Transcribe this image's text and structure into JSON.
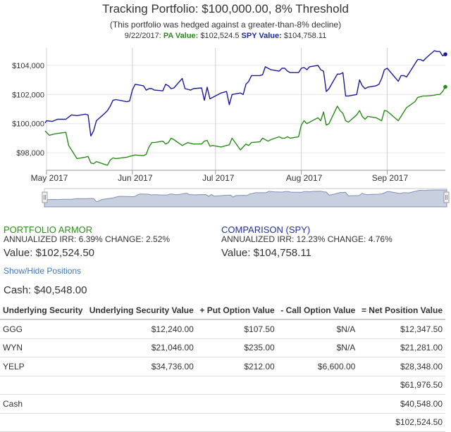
{
  "header": {
    "title": "Tracking Portfolio: $100,000.00, 8% Threshold",
    "subtitle": "(This portfolio was hedged against a greater-than-8% decline)",
    "readout_date": "9/22/2017:",
    "readout_pa_label": "PA Value:",
    "readout_pa_value": "$102,524.5",
    "readout_spy_label": "SPY Value:",
    "readout_spy_value": "$104,758.11"
  },
  "colors": {
    "pa": "#2a8a1a",
    "spy": "#1a1a9a",
    "grid": "#e6e6e6",
    "navigator_fill": "#c8d0df"
  },
  "chart_data": {
    "type": "line",
    "x_start": "2017-05-01",
    "x_end": "2017-09-22",
    "x_ticks": [
      {
        "date": "2017-05-01",
        "label": "May 2017"
      },
      {
        "date": "2017-06-01",
        "label": "Jun 2017"
      },
      {
        "date": "2017-07-01",
        "label": "Jul 2017"
      },
      {
        "date": "2017-08-01",
        "label": "Aug 2017"
      },
      {
        "date": "2017-09-01",
        "label": "Sep 2017"
      }
    ],
    "y_ticks": [
      {
        "value": 98000,
        "label": "$98,000"
      },
      {
        "value": 100000,
        "label": "$100,000"
      },
      {
        "value": 102000,
        "label": "$102,000"
      },
      {
        "value": 104000,
        "label": "$104,000"
      }
    ],
    "ylim": [
      96800,
      105200
    ],
    "grid": "vertical at month ticks, horizontal at y ticks",
    "series": [
      {
        "key": "spy",
        "color": "#1a1a9a",
        "points": [
          [
            "2017-04-28",
            100050
          ],
          [
            "2017-05-01",
            100200
          ],
          [
            "2017-05-03",
            100150
          ],
          [
            "2017-05-05",
            100300
          ],
          [
            "2017-05-08",
            100300
          ],
          [
            "2017-05-10",
            100600
          ],
          [
            "2017-05-12",
            100550
          ],
          [
            "2017-05-15",
            100650
          ],
          [
            "2017-05-16",
            100600
          ],
          [
            "2017-05-17",
            99150
          ],
          [
            "2017-05-18",
            99500
          ],
          [
            "2017-05-19",
            100200
          ],
          [
            "2017-05-22",
            100700
          ],
          [
            "2017-05-23",
            100900
          ],
          [
            "2017-05-24",
            101200
          ],
          [
            "2017-05-25",
            101600
          ],
          [
            "2017-05-26",
            101650
          ],
          [
            "2017-05-30",
            101500
          ],
          [
            "2017-05-31",
            101550
          ],
          [
            "2017-06-01",
            102300
          ],
          [
            "2017-06-02",
            102700
          ],
          [
            "2017-06-05",
            102600
          ],
          [
            "2017-06-06",
            102300
          ],
          [
            "2017-06-07",
            102400
          ],
          [
            "2017-06-08",
            102400
          ],
          [
            "2017-06-09",
            102300
          ],
          [
            "2017-06-12",
            102250
          ],
          [
            "2017-06-13",
            102700
          ],
          [
            "2017-06-14",
            102600
          ],
          [
            "2017-06-15",
            102400
          ],
          [
            "2017-06-16",
            102450
          ],
          [
            "2017-06-19",
            103100
          ],
          [
            "2017-06-20",
            102400
          ],
          [
            "2017-06-21",
            102350
          ],
          [
            "2017-06-22",
            102300
          ],
          [
            "2017-06-23",
            102400
          ],
          [
            "2017-06-26",
            102450
          ],
          [
            "2017-06-27",
            101600
          ],
          [
            "2017-06-28",
            102500
          ],
          [
            "2017-06-29",
            101700
          ],
          [
            "2017-06-30",
            101800
          ],
          [
            "2017-07-03",
            102100
          ],
          [
            "2017-07-05",
            102200
          ],
          [
            "2017-07-06",
            101300
          ],
          [
            "2017-07-07",
            102000
          ],
          [
            "2017-07-10",
            102100
          ],
          [
            "2017-07-11",
            102000
          ],
          [
            "2017-07-12",
            102700
          ],
          [
            "2017-07-13",
            102900
          ],
          [
            "2017-07-14",
            103300
          ],
          [
            "2017-07-17",
            103300
          ],
          [
            "2017-07-18",
            103350
          ],
          [
            "2017-07-19",
            103900
          ],
          [
            "2017-07-20",
            103800
          ],
          [
            "2017-07-21",
            103700
          ],
          [
            "2017-07-24",
            103600
          ],
          [
            "2017-07-25",
            103800
          ],
          [
            "2017-07-26",
            103800
          ],
          [
            "2017-07-27",
            103600
          ],
          [
            "2017-07-28",
            103500
          ],
          [
            "2017-07-31",
            103500
          ],
          [
            "2017-08-01",
            103800
          ],
          [
            "2017-08-02",
            103850
          ],
          [
            "2017-08-03",
            103700
          ],
          [
            "2017-08-04",
            103900
          ],
          [
            "2017-08-07",
            104000
          ],
          [
            "2017-08-08",
            103700
          ],
          [
            "2017-08-09",
            103600
          ],
          [
            "2017-08-10",
            102200
          ],
          [
            "2017-08-11",
            102400
          ],
          [
            "2017-08-14",
            103400
          ],
          [
            "2017-08-15",
            103400
          ],
          [
            "2017-08-16",
            103500
          ],
          [
            "2017-08-17",
            101900
          ],
          [
            "2017-08-18",
            101900
          ],
          [
            "2017-08-21",
            102000
          ],
          [
            "2017-08-22",
            103000
          ],
          [
            "2017-08-23",
            102600
          ],
          [
            "2017-08-24",
            102400
          ],
          [
            "2017-08-25",
            102500
          ],
          [
            "2017-08-28",
            102600
          ],
          [
            "2017-08-29",
            102700
          ],
          [
            "2017-08-30",
            103100
          ],
          [
            "2017-08-31",
            103700
          ],
          [
            "2017-09-01",
            103800
          ],
          [
            "2017-09-05",
            102900
          ],
          [
            "2017-09-06",
            103300
          ],
          [
            "2017-09-07",
            103300
          ],
          [
            "2017-09-08",
            103200
          ],
          [
            "2017-09-11",
            104100
          ],
          [
            "2017-09-12",
            104400
          ],
          [
            "2017-09-13",
            104400
          ],
          [
            "2017-09-14",
            104300
          ],
          [
            "2017-09-15",
            104500
          ],
          [
            "2017-09-18",
            105000
          ],
          [
            "2017-09-19",
            104950
          ],
          [
            "2017-09-20",
            104950
          ],
          [
            "2017-09-21",
            104650
          ],
          [
            "2017-09-22",
            104758
          ]
        ]
      },
      {
        "key": "pa",
        "color": "#2a8a1a",
        "points": [
          [
            "2017-04-28",
            99500
          ],
          [
            "2017-05-01",
            99400
          ],
          [
            "2017-05-02",
            99200
          ],
          [
            "2017-05-04",
            99300
          ],
          [
            "2017-05-08",
            99400
          ],
          [
            "2017-05-09",
            98500
          ],
          [
            "2017-05-10",
            98200
          ],
          [
            "2017-05-12",
            97600
          ],
          [
            "2017-05-15",
            97700
          ],
          [
            "2017-05-16",
            97750
          ],
          [
            "2017-05-17",
            97300
          ],
          [
            "2017-05-18",
            97250
          ],
          [
            "2017-05-19",
            97400
          ],
          [
            "2017-05-22",
            97200
          ],
          [
            "2017-05-23",
            97150
          ],
          [
            "2017-05-24",
            97500
          ],
          [
            "2017-05-25",
            97650
          ],
          [
            "2017-05-26",
            97600
          ],
          [
            "2017-05-30",
            97700
          ],
          [
            "2017-05-31",
            97750
          ],
          [
            "2017-06-01",
            97800
          ],
          [
            "2017-06-02",
            97850
          ],
          [
            "2017-06-05",
            97800
          ],
          [
            "2017-06-06",
            97900
          ],
          [
            "2017-06-07",
            98400
          ],
          [
            "2017-06-08",
            98700
          ],
          [
            "2017-06-09",
            98700
          ],
          [
            "2017-06-12",
            98800
          ],
          [
            "2017-06-13",
            98600
          ],
          [
            "2017-06-14",
            98700
          ],
          [
            "2017-06-15",
            99000
          ],
          [
            "2017-06-16",
            98900
          ],
          [
            "2017-06-19",
            98500
          ],
          [
            "2017-06-20",
            98600
          ],
          [
            "2017-06-21",
            98700
          ],
          [
            "2017-06-22",
            98650
          ],
          [
            "2017-06-23",
            98600
          ],
          [
            "2017-06-26",
            98600
          ],
          [
            "2017-06-27",
            98800
          ],
          [
            "2017-06-28",
            98850
          ],
          [
            "2017-06-29",
            98450
          ],
          [
            "2017-06-30",
            98500
          ],
          [
            "2017-07-03",
            98400
          ],
          [
            "2017-07-05",
            98500
          ],
          [
            "2017-07-06",
            98550
          ],
          [
            "2017-07-07",
            99000
          ],
          [
            "2017-07-10",
            98200
          ],
          [
            "2017-07-11",
            98400
          ],
          [
            "2017-07-12",
            98600
          ],
          [
            "2017-07-13",
            98500
          ],
          [
            "2017-07-14",
            98700
          ],
          [
            "2017-07-17",
            98750
          ],
          [
            "2017-07-18",
            99000
          ],
          [
            "2017-07-19",
            98900
          ],
          [
            "2017-07-20",
            98800
          ],
          [
            "2017-07-21",
            98900
          ],
          [
            "2017-07-24",
            99100
          ],
          [
            "2017-07-25",
            99000
          ],
          [
            "2017-07-26",
            99000
          ],
          [
            "2017-07-27",
            99100
          ],
          [
            "2017-07-28",
            99000
          ],
          [
            "2017-07-31",
            99100
          ],
          [
            "2017-08-01",
            99900
          ],
          [
            "2017-08-02",
            100200
          ],
          [
            "2017-08-03",
            100000
          ],
          [
            "2017-08-04",
            100100
          ],
          [
            "2017-08-07",
            100400
          ],
          [
            "2017-08-08",
            100200
          ],
          [
            "2017-08-09",
            100800
          ],
          [
            "2017-08-10",
            99900
          ],
          [
            "2017-08-11",
            100000
          ],
          [
            "2017-08-14",
            101200
          ],
          [
            "2017-08-15",
            100900
          ],
          [
            "2017-08-16",
            100700
          ],
          [
            "2017-08-17",
            100200
          ],
          [
            "2017-08-18",
            100100
          ],
          [
            "2017-08-21",
            100600
          ],
          [
            "2017-08-22",
            100900
          ],
          [
            "2017-08-23",
            100500
          ],
          [
            "2017-08-24",
            100300
          ],
          [
            "2017-08-25",
            100500
          ],
          [
            "2017-08-28",
            100400
          ],
          [
            "2017-08-29",
            100300
          ],
          [
            "2017-08-30",
            100200
          ],
          [
            "2017-08-31",
            100900
          ],
          [
            "2017-09-01",
            100850
          ],
          [
            "2017-09-05",
            100200
          ],
          [
            "2017-09-06",
            100500
          ],
          [
            "2017-09-07",
            100800
          ],
          [
            "2017-09-08",
            101100
          ],
          [
            "2017-09-11",
            101500
          ],
          [
            "2017-09-12",
            101800
          ],
          [
            "2017-09-13",
            101850
          ],
          [
            "2017-09-14",
            101900
          ],
          [
            "2017-09-15",
            101900
          ],
          [
            "2017-09-18",
            101950
          ],
          [
            "2017-09-19",
            102000
          ],
          [
            "2017-09-20",
            102000
          ],
          [
            "2017-09-21",
            102200
          ],
          [
            "2017-09-22",
            102524.5
          ]
        ]
      }
    ]
  },
  "summary": {
    "pa": {
      "heading": "PORTFOLIO ARMOR",
      "stats": "ANNUALIZED IRR: 6.39% CHANGE: 2.52%",
      "value": "Value: $102,524.50"
    },
    "spy": {
      "heading": "COMPARISON (SPY)",
      "stats": "ANNUALIZED IRR: 12.23% CHANGE: 4.76%",
      "value": "Value: $104,758.11"
    }
  },
  "show_hide_label": "Show/Hide Positions",
  "cash_line": "Cash: $40,548.00",
  "table": {
    "headers": [
      "Underlying Security",
      "Underlying Security Value",
      "+ Put Option Value",
      "- Call Option Value",
      "= Net Position Value"
    ],
    "rows": [
      [
        "GGG",
        "$12,240.00",
        "$107.50",
        "$N/A",
        "$12,347.50"
      ],
      [
        "WYN",
        "$21,046.00",
        "$235.00",
        "$N/A",
        "$21,281.00"
      ],
      [
        "YELP",
        "$34,736.00",
        "$212.00",
        "$6,600.00",
        "$28,348.00"
      ],
      [
        "",
        "",
        "",
        "",
        "$61,976.50"
      ],
      [
        "Cash",
        "",
        "",
        "",
        "$40,548.00"
      ],
      [
        "",
        "",
        "",
        "",
        "$102,524.50"
      ]
    ]
  }
}
